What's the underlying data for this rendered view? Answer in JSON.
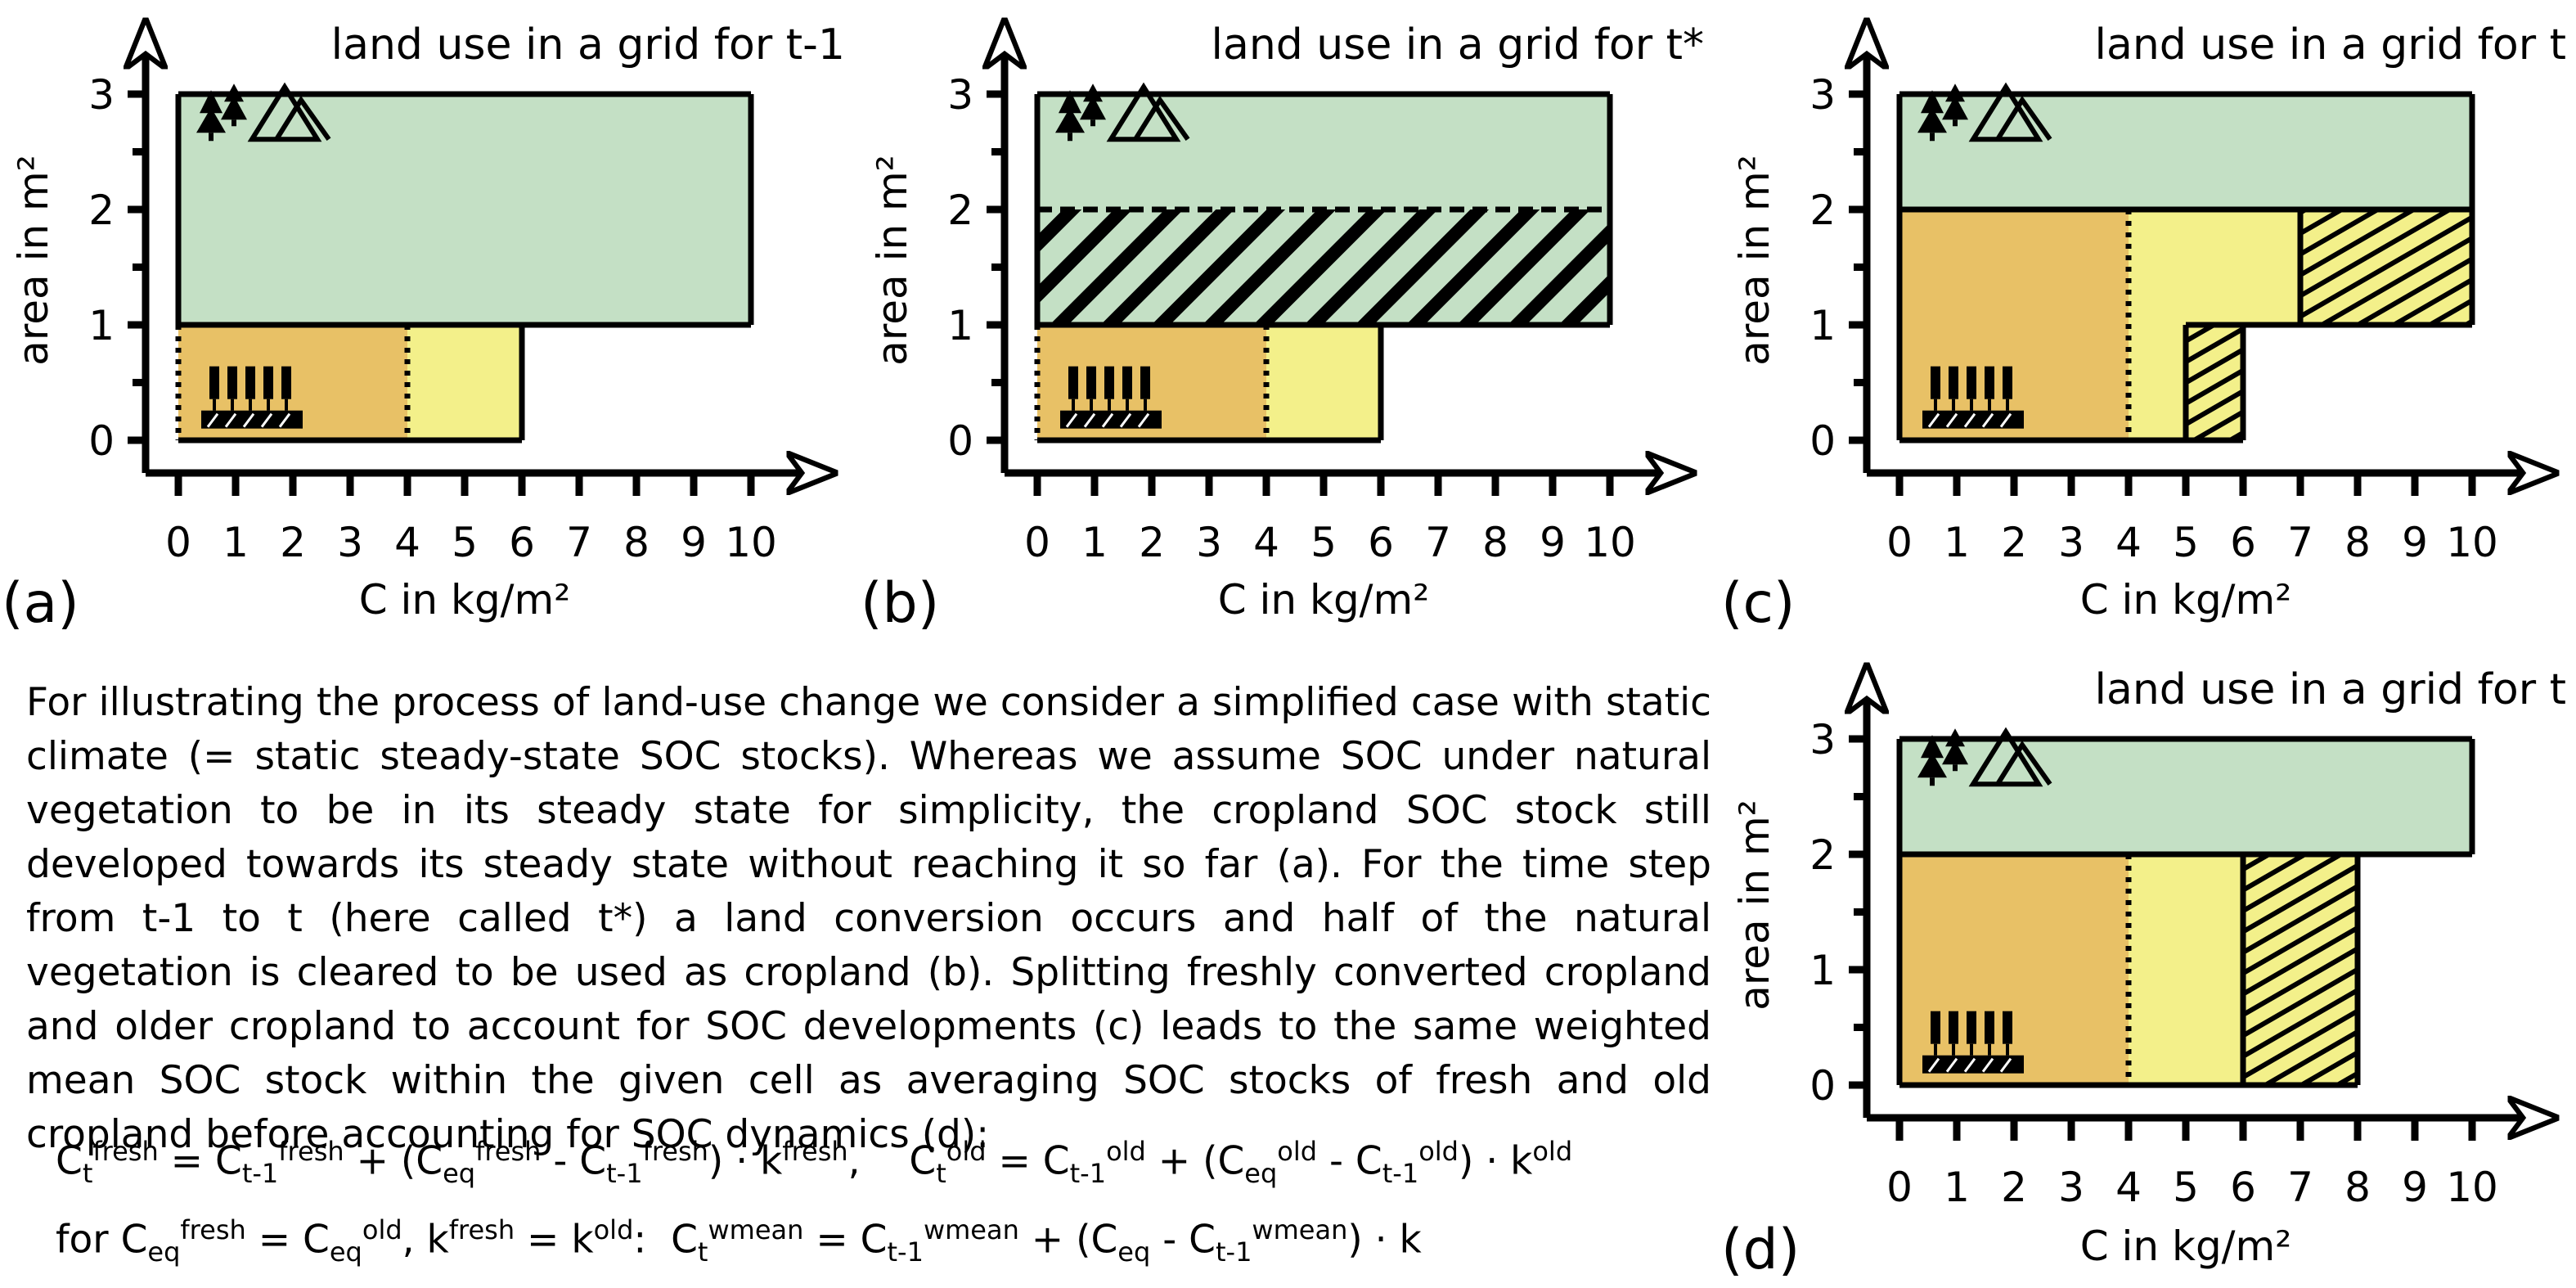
{
  "colors": {
    "natural": "#c4e0c5",
    "old_cropland": "#e8c166",
    "fresh_cropland": "#f3f08a",
    "stroke": "#000000"
  },
  "icons": {
    "natural": "trees-mountains-icon",
    "cropland": "crop-field-icon"
  },
  "panels": [
    {
      "letter": "(a)",
      "title": "land use in a grid for t-1",
      "x_label": "C in kg/m²",
      "y_label": "area in m²",
      "x_ticks": [
        "0",
        "1",
        "2",
        "3",
        "4",
        "5",
        "6",
        "7",
        "8",
        "9",
        "10"
      ],
      "y_ticks": [
        "0",
        "1",
        "2",
        "3"
      ],
      "blocks": [
        {
          "type": "natural vegetation",
          "area_from": 1,
          "area_to": 3,
          "c_from": 0,
          "c_to": 10,
          "fill": "natural"
        },
        {
          "type": "old cropland",
          "area_from": 0,
          "area_to": 1,
          "c_from": 0,
          "c_to": 4,
          "fill": "old_cropland"
        },
        {
          "type": "cropland increment",
          "area_from": 0,
          "area_to": 1,
          "c_from": 4,
          "c_to": 6,
          "fill": "fresh_cropland"
        }
      ]
    },
    {
      "letter": "(b)",
      "title": "land use in a grid for t*",
      "x_label": "C in kg/m²",
      "y_label": "area in m²",
      "x_ticks": [
        "0",
        "1",
        "2",
        "3",
        "4",
        "5",
        "6",
        "7",
        "8",
        "9",
        "10"
      ],
      "y_ticks": [
        "0",
        "1",
        "2",
        "3"
      ],
      "blocks": [
        {
          "type": "natural vegetation",
          "area_from": 2,
          "area_to": 3,
          "c_from": 0,
          "c_to": 10,
          "fill": "natural"
        },
        {
          "type": "cleared natural vegetation",
          "area_from": 1,
          "area_to": 2,
          "c_from": 0,
          "c_to": 10,
          "fill": "natural",
          "hatch": true
        },
        {
          "type": "old cropland",
          "area_from": 0,
          "area_to": 1,
          "c_from": 0,
          "c_to": 4,
          "fill": "old_cropland"
        },
        {
          "type": "cropland increment",
          "area_from": 0,
          "area_to": 1,
          "c_from": 4,
          "c_to": 6,
          "fill": "fresh_cropland"
        }
      ]
    },
    {
      "letter": "(c)",
      "title": "land use in a grid for t",
      "x_label": "C in kg/m²",
      "y_label": "area in m²",
      "x_ticks": [
        "0",
        "1",
        "2",
        "3",
        "4",
        "5",
        "6",
        "7",
        "8",
        "9",
        "10"
      ],
      "y_ticks": [
        "0",
        "1",
        "2",
        "3"
      ],
      "blocks": [
        {
          "type": "natural vegetation",
          "area_from": 2,
          "area_to": 3,
          "c_from": 0,
          "c_to": 10,
          "fill": "natural"
        },
        {
          "type": "old cropland",
          "area_from": 0,
          "area_to": 2,
          "c_from": 0,
          "c_to": 4,
          "fill": "old_cropland"
        },
        {
          "type": "fresh cropland",
          "area_from": 1,
          "area_to": 2,
          "c_from": 4,
          "c_to": 7,
          "fill": "fresh_cropland"
        },
        {
          "type": "fresh cropland loss",
          "area_from": 1,
          "area_to": 2,
          "c_from": 7,
          "c_to": 10,
          "fill": "fresh_cropland",
          "hatch": true
        },
        {
          "type": "old cropland gain",
          "area_from": 0,
          "area_to": 1,
          "c_from": 4,
          "c_to": 5,
          "fill": "fresh_cropland"
        },
        {
          "type": "old cropland increment",
          "area_from": 0,
          "area_to": 1,
          "c_from": 5,
          "c_to": 6,
          "fill": "fresh_cropland",
          "hatch": true
        }
      ]
    },
    {
      "letter": "(d)",
      "title": "land use in a grid for t",
      "x_label": "C in kg/m²",
      "y_label": "area in m²",
      "x_ticks": [
        "0",
        "1",
        "2",
        "3",
        "4",
        "5",
        "6",
        "7",
        "8",
        "9",
        "10"
      ],
      "y_ticks": [
        "0",
        "1",
        "2",
        "3"
      ],
      "blocks": [
        {
          "type": "natural vegetation",
          "area_from": 2,
          "area_to": 3,
          "c_from": 0,
          "c_to": 10,
          "fill": "natural"
        },
        {
          "type": "old cropland",
          "area_from": 0,
          "area_to": 2,
          "c_from": 0,
          "c_to": 4,
          "fill": "old_cropland"
        },
        {
          "type": "cropland increment",
          "area_from": 0,
          "area_to": 2,
          "c_from": 4,
          "c_to": 6,
          "fill": "fresh_cropland"
        },
        {
          "type": "cropland increment hatched",
          "area_from": 0,
          "area_to": 2,
          "c_from": 6,
          "c_to": 8,
          "fill": "fresh_cropland",
          "hatch": true
        }
      ]
    }
  ],
  "paragraph": "For illustrating the process of land-use change we consider a simplified case with static climate (= static steady-state SOC stocks). Whereas we assume SOC under natural vegetation to be in its steady state for simplicity, the cropland SOC stock still developed towards its steady state without reaching it so far (a). For the time step from t-1 to t (here called t*) a land conversion occurs and half of the natural vegetation is cleared to be used as cropland (b). Splitting freshly converted cropland and older cropland to account for SOC developments (c) leads to the same weighted mean SOC stock within the given cell as averaging SOC stocks of fresh and old cropland before accounting for SOC dynamics (d):",
  "equations": {
    "C": "C",
    "t": "t",
    "tm1": "t-1",
    "eq": "eq",
    "fresh": "fresh",
    "old": "old",
    "wmean": "wmean",
    "k": "k",
    "equals": " = ",
    "plus": " + (",
    "minus": " - ",
    "times": ") · ",
    "sep": ",    ",
    "for": "for ",
    "comma": ", ",
    "colon": ":  "
  }
}
